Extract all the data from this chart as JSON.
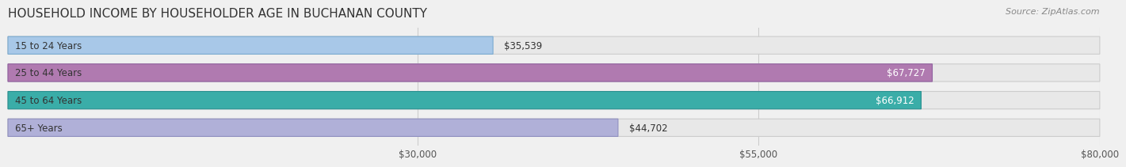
{
  "title": "HOUSEHOLD INCOME BY HOUSEHOLDER AGE IN BUCHANAN COUNTY",
  "source": "Source: ZipAtlas.com",
  "categories": [
    "15 to 24 Years",
    "25 to 44 Years",
    "45 to 64 Years",
    "65+ Years"
  ],
  "values": [
    35539,
    67727,
    66912,
    44702
  ],
  "labels": [
    "$35,539",
    "$67,727",
    "$66,912",
    "$44,702"
  ],
  "bar_colors": [
    "#a8c8e8",
    "#b07ab0",
    "#3aada8",
    "#b0b0d8"
  ],
  "bar_edge_colors": [
    "#7aaad0",
    "#9060a0",
    "#2a9090",
    "#9090c0"
  ],
  "xlim": [
    0,
    80000
  ],
  "xticks": [
    30000,
    55000,
    80000
  ],
  "xticklabels": [
    "$30,000",
    "$55,000",
    "$80,000"
  ],
  "bg_color": "#f0f0f0",
  "bar_bg_color": "#e8e8e8",
  "title_fontsize": 11,
  "label_fontsize": 8.5,
  "source_fontsize": 8
}
